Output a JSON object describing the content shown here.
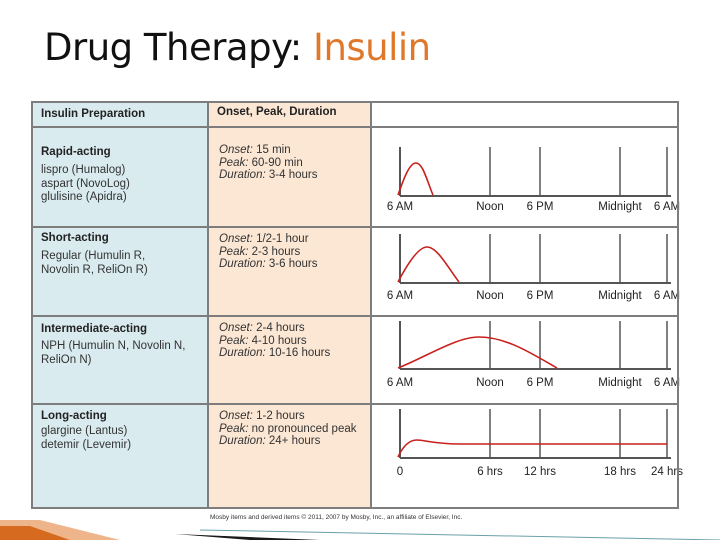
{
  "slide": {
    "title_main": "Drug Therapy: ",
    "title_accent": "Insulin",
    "accent_color": "#e0782b"
  },
  "table": {
    "header_prep": "Insulin Preparation",
    "header_opd": "Onset, Peak, Duration",
    "rows": [
      {
        "category": "Rapid-acting",
        "preps": [
          "lispro (Humalog)",
          "aspart (NovoLog)",
          "glulisine (Apidra)"
        ],
        "onset": "15 min",
        "peak": "60-90 min",
        "duration": "3-4 hours",
        "axis": [
          "6 AM",
          "Noon",
          "6 PM",
          "Midnight",
          "6 AM"
        ]
      },
      {
        "category": "Short-acting",
        "preps": [
          "Regular (Humulin R,",
          "Novolin R, ReliOn R)"
        ],
        "onset": "1/2-1 hour",
        "peak": "2-3 hours",
        "duration": "3-6 hours",
        "axis": [
          "6 AM",
          "Noon",
          "6 PM",
          "Midnight",
          "6 AM"
        ]
      },
      {
        "category": "Intermediate-acting",
        "preps": [
          "NPH (Humulin N, Novolin N,",
          "ReliOn N)"
        ],
        "onset": "2-4 hours",
        "peak": "4-10 hours",
        "duration": "10-16 hours",
        "axis": [
          "6 AM",
          "Noon",
          "6 PM",
          "Midnight",
          "6 AM"
        ]
      },
      {
        "category": "Long-acting",
        "preps": [
          "glargine (Lantus)",
          "detemir (Levemir)"
        ],
        "onset": "1-2 hours",
        "peak": "no pronounced peak",
        "duration": "24+ hours",
        "axis": [
          "0",
          "6 hrs",
          "12 hrs",
          "18 hrs",
          "24 hrs"
        ]
      }
    ],
    "labels": {
      "onset": "Onset:",
      "peak": "Peak:",
      "duration": "Duration:"
    },
    "curve_color": "#c8201c"
  },
  "credit": "Mosby items and derived items © 2011, 2007 by Mosby, Inc., an affiliate of Elsevier, Inc."
}
